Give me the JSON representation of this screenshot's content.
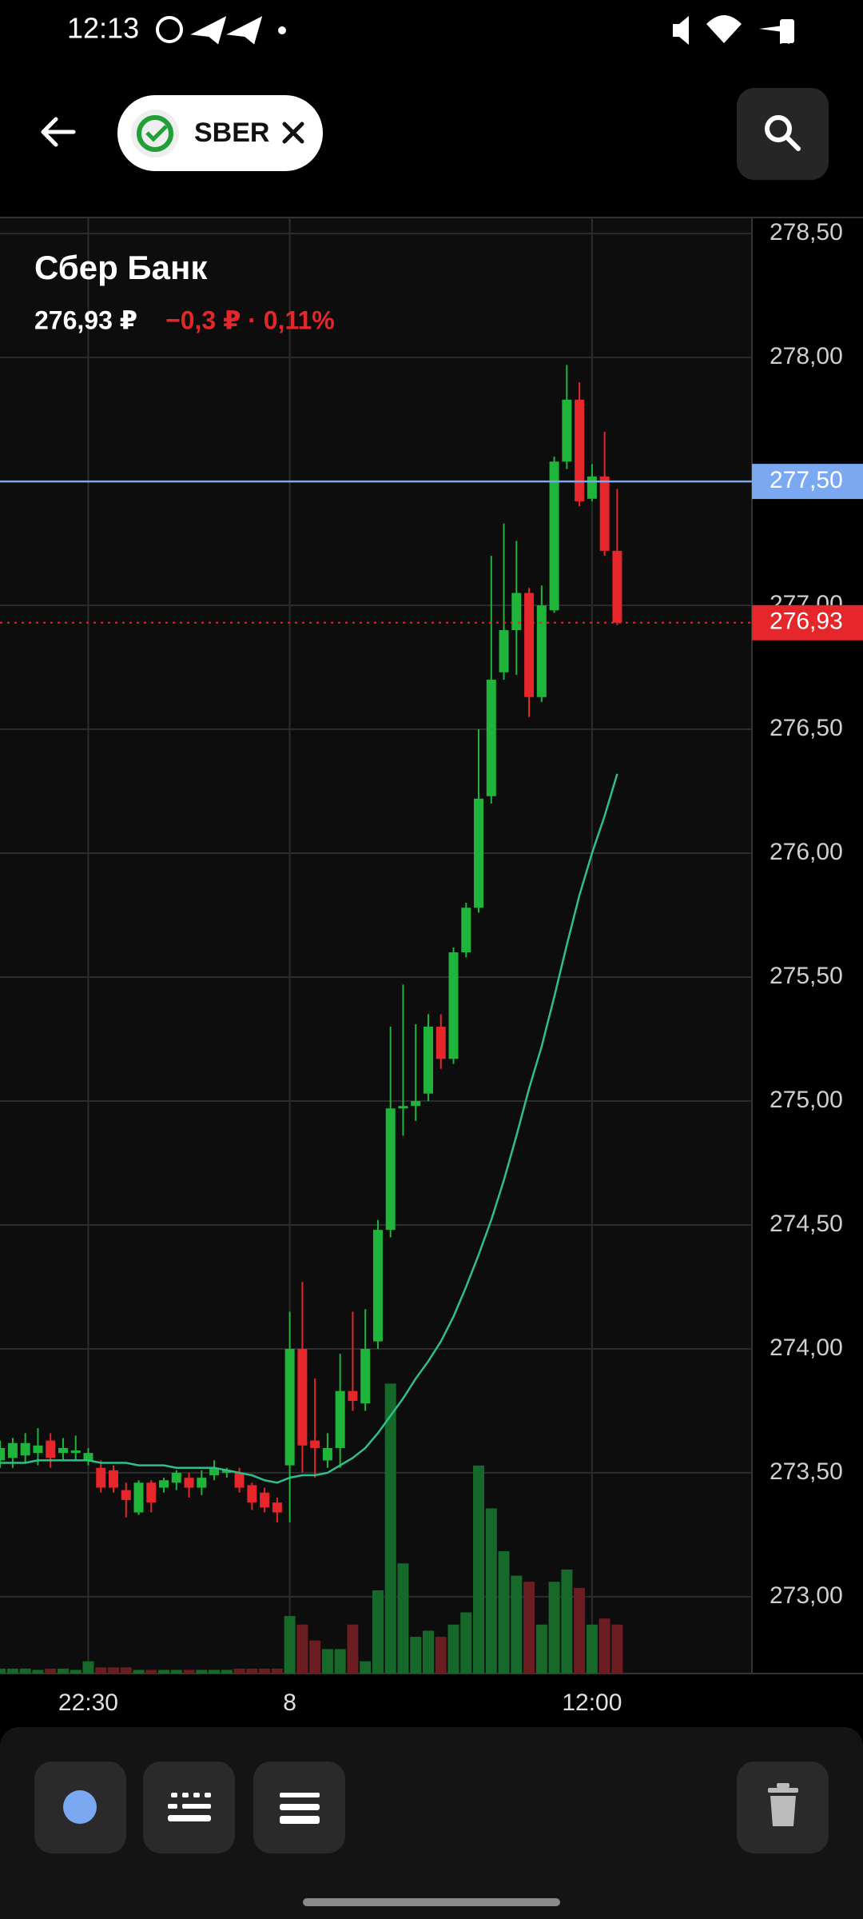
{
  "status_bar": {
    "time": "12:13"
  },
  "header": {
    "ticker": "SBER"
  },
  "chart_data": {
    "type": "candlestick",
    "title": "Сбер Банк",
    "price": "276,93 ₽",
    "change": "−0,3 ₽ · 0,11%",
    "categories": [
      null,
      null,
      null,
      null,
      null,
      null,
      null,
      "22:30",
      null,
      null,
      null,
      null,
      null,
      null,
      null,
      null,
      null,
      null,
      null,
      null,
      null,
      null,
      null,
      "8",
      null,
      null,
      null,
      null,
      null,
      null,
      null,
      null,
      null,
      null,
      null,
      null,
      null,
      null,
      null,
      null,
      null,
      null,
      null,
      null,
      null,
      null,
      null,
      "12:00",
      null,
      null
    ],
    "open": [
      273.55,
      273.56,
      273.57,
      273.58,
      273.63,
      273.58,
      273.58,
      273.55,
      273.52,
      273.51,
      273.43,
      273.34,
      273.46,
      273.44,
      273.46,
      273.48,
      273.44,
      273.49,
      273.5,
      273.5,
      273.45,
      273.42,
      273.38,
      273.53,
      274.0,
      273.63,
      273.55,
      273.6,
      273.83,
      273.78,
      274.03,
      274.48,
      274.97,
      274.98,
      275.03,
      275.3,
      275.17,
      275.6,
      275.78,
      276.23,
      276.73,
      276.9,
      277.05,
      276.63,
      276.98,
      277.58,
      277.83,
      277.43,
      277.52,
      277.22
    ],
    "high": [
      273.63,
      273.64,
      273.66,
      273.68,
      273.66,
      273.64,
      273.65,
      273.6,
      273.55,
      273.53,
      273.46,
      273.47,
      273.47,
      273.48,
      273.51,
      273.5,
      273.51,
      273.55,
      273.52,
      273.52,
      273.46,
      273.44,
      273.4,
      274.15,
      274.27,
      273.88,
      273.66,
      273.98,
      274.15,
      274.16,
      274.52,
      275.3,
      275.47,
      275.31,
      275.35,
      275.35,
      275.62,
      275.8,
      276.5,
      277.2,
      277.33,
      277.26,
      277.07,
      277.08,
      277.6,
      277.97,
      277.9,
      277.57,
      277.7,
      277.47
    ],
    "low": [
      273.52,
      273.52,
      273.54,
      273.53,
      273.52,
      273.55,
      273.55,
      273.53,
      273.42,
      273.42,
      273.32,
      273.33,
      273.34,
      273.42,
      273.43,
      273.4,
      273.41,
      273.47,
      273.48,
      273.42,
      273.35,
      273.34,
      273.3,
      273.3,
      273.5,
      273.48,
      273.52,
      273.52,
      273.75,
      273.75,
      274.0,
      274.45,
      274.86,
      274.92,
      275.0,
      275.13,
      275.15,
      275.58,
      275.76,
      276.2,
      276.7,
      276.72,
      276.55,
      276.61,
      276.97,
      277.55,
      277.4,
      277.42,
      277.2,
      276.92
    ],
    "close": [
      273.6,
      273.62,
      273.62,
      273.61,
      273.56,
      273.6,
      273.59,
      273.58,
      273.44,
      273.44,
      273.39,
      273.46,
      273.38,
      273.47,
      273.5,
      273.44,
      273.48,
      273.52,
      273.51,
      273.44,
      273.38,
      273.36,
      273.34,
      274.0,
      273.61,
      273.6,
      273.6,
      273.83,
      273.79,
      274.0,
      274.48,
      274.97,
      274.98,
      275.0,
      275.3,
      275.17,
      275.6,
      275.78,
      276.22,
      276.7,
      276.9,
      277.05,
      276.63,
      277.0,
      277.58,
      277.83,
      277.42,
      277.52,
      277.22,
      276.93
    ],
    "up_color": "#1fb53a",
    "down_color": "#e5262b",
    "volume": [
      4,
      4,
      4,
      3,
      4,
      4,
      3,
      10,
      5,
      5,
      5,
      3,
      3,
      3,
      3,
      3,
      3,
      3,
      3,
      4,
      4,
      4,
      4,
      47,
      40,
      27,
      20,
      20,
      40,
      10,
      68,
      237,
      90,
      30,
      35,
      30,
      40,
      50,
      170,
      135,
      100,
      80,
      75,
      40,
      75,
      85,
      70,
      40,
      45,
      40
    ],
    "volume_up_color": "#17692a",
    "volume_down_color": "#6b1d22",
    "ma": {
      "color": "#2fbf8c",
      "values": [
        273.54,
        273.54,
        273.54,
        273.55,
        273.55,
        273.55,
        273.55,
        273.55,
        273.54,
        273.54,
        273.54,
        273.53,
        273.53,
        273.53,
        273.52,
        273.52,
        273.52,
        273.52,
        273.51,
        273.5,
        273.49,
        273.47,
        273.46,
        273.48,
        273.49,
        273.49,
        273.5,
        273.53,
        273.56,
        273.6,
        273.66,
        273.73,
        273.8,
        273.88,
        273.95,
        274.03,
        274.13,
        274.25,
        274.38,
        274.52,
        274.68,
        274.86,
        275.05,
        275.22,
        275.42,
        275.63,
        275.83,
        276.0,
        276.15,
        276.32
      ]
    },
    "ylim": [
      272.69,
      278.565
    ],
    "yticks": [
      {
        "value": 273.0,
        "label": "273,00"
      },
      {
        "value": 273.5,
        "label": "273,50"
      },
      {
        "value": 274.0,
        "label": "274,00"
      },
      {
        "value": 274.5,
        "label": "274,50"
      },
      {
        "value": 275.0,
        "label": "275,00"
      },
      {
        "value": 275.5,
        "label": "275,50"
      },
      {
        "value": 276.0,
        "label": "276,00"
      },
      {
        "value": 276.5,
        "label": "276,50"
      },
      {
        "value": 277.0,
        "label": "277,00"
      },
      {
        "value": 277.5,
        "label": "277,50"
      },
      {
        "value": 278.0,
        "label": "278,00"
      },
      {
        "value": 278.5,
        "label": "278,50"
      }
    ],
    "grid": true,
    "level": {
      "value": 277.5,
      "label": "277,50",
      "color": "#7aa9f2"
    },
    "last": {
      "value": 276.93,
      "label": "276,93",
      "color": "#e5262b"
    }
  }
}
